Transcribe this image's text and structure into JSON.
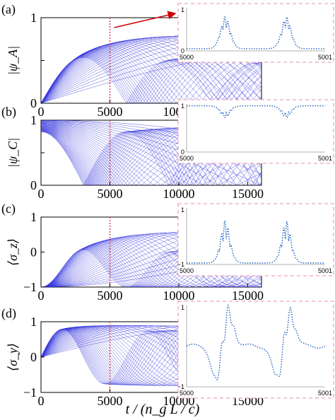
{
  "figure": {
    "xlabel": "t / (n_g L / c)",
    "colors": {
      "curve": "#3333dd",
      "inset_curve": "#1f5fbf",
      "dashed": "#e88ca0",
      "marker": "#e0505a",
      "arrow": "#d00000"
    },
    "marker_line_x": 5000
  },
  "chart_data": [
    {
      "panel_label": "(a)",
      "type": "line",
      "ylabel": "|ψ_A|",
      "quantity": "psiA",
      "xlim": [
        0,
        16000
      ],
      "ylim": [
        0,
        1
      ],
      "xticks": [
        0,
        5000,
        10000,
        15000
      ],
      "xtick_labels": [
        "0",
        "5000",
        "10000",
        "15000"
      ],
      "yticks": [
        0,
        0.5,
        1
      ],
      "ytick_labels": [
        "0",
        "0.5",
        "1"
      ],
      "series_count": 40,
      "envelope_peaks": [
        [
          3100,
          1.0
        ],
        [
          9500,
          0.92
        ],
        [
          16000,
          0.85
        ]
      ],
      "inset": {
        "xlim": [
          5000,
          5001
        ],
        "ylim": [
          0,
          1
        ],
        "xtick_labels": [
          "5000",
          "5001"
        ],
        "ytick_labels": [
          "0",
          "1"
        ],
        "quantity": "psiA",
        "arrow": true
      }
    },
    {
      "panel_label": "(b)",
      "type": "line",
      "ylabel": "|ψ_C|",
      "quantity": "psiC",
      "xlim": [
        0,
        16000
      ],
      "ylim": [
        0,
        1
      ],
      "xticks": [
        0,
        5000,
        10000,
        15000
      ],
      "xtick_labels": [
        "0",
        "5000",
        "10000",
        "15000"
      ],
      "yticks": [
        0,
        0.5,
        1
      ],
      "ytick_labels": [
        "0",
        "0.5",
        "1"
      ],
      "series_count": 40,
      "envelope_minima": [
        [
          3100,
          0.0
        ],
        [
          9500,
          0.03
        ]
      ],
      "inset": {
        "xlim": [
          5000,
          5001
        ],
        "ylim": [
          0,
          1
        ],
        "xtick_labels": [
          "5000",
          "5001"
        ],
        "ytick_labels": [
          "0",
          "1"
        ],
        "quantity": "psiC",
        "arrow": false
      }
    },
    {
      "panel_label": "(c)",
      "type": "line",
      "ylabel": "⟨σ_z⟩",
      "quantity": "sz",
      "xlim": [
        0,
        16000
      ],
      "ylim": [
        -1,
        1
      ],
      "xticks": [
        0,
        5000,
        10000,
        15000
      ],
      "xtick_labels": [
        "0",
        "5000",
        "10000",
        "15000"
      ],
      "yticks": [
        -1,
        0,
        1
      ],
      "ytick_labels": [
        "−1",
        "0",
        "1"
      ],
      "series_count": 40,
      "envelope_peaks": [
        [
          3100,
          0.9
        ],
        [
          9500,
          0.85
        ]
      ],
      "inset": {
        "xlim": [
          5000,
          5001
        ],
        "ylim": [
          -1,
          1
        ],
        "xtick_labels": [
          "5000",
          "5001"
        ],
        "ytick_labels": [
          "−1",
          "1"
        ],
        "quantity": "sz",
        "arrow": false
      }
    },
    {
      "panel_label": "(d)",
      "type": "line",
      "ylabel": "⟨σ_y⟩",
      "quantity": "sy",
      "xlim": [
        0,
        16000
      ],
      "ylim": [
        -1,
        1
      ],
      "xticks": [
        0,
        5000,
        10000,
        15000
      ],
      "xtick_labels": [
        "0",
        "5000",
        "10000",
        "15000"
      ],
      "yticks": [
        -1,
        0,
        1
      ],
      "ytick_labels": [
        "−1",
        "0",
        "1"
      ],
      "series_count": 40,
      "envelope_peaks": [
        [
          1550,
          1.0
        ],
        [
          4650,
          -1.0
        ]
      ],
      "inset": {
        "xlim": [
          5000,
          5001
        ],
        "ylim": [
          -1,
          1
        ],
        "xtick_labels": [
          "5000",
          "5001"
        ],
        "ytick_labels": [
          "−1",
          "1"
        ],
        "quantity": "sy",
        "arrow": false
      }
    }
  ]
}
